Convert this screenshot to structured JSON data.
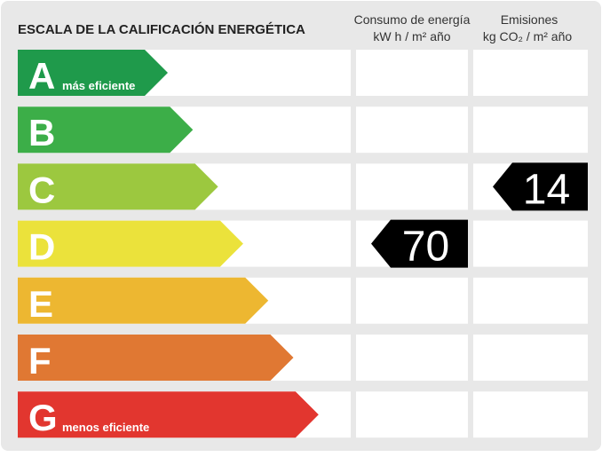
{
  "header": {
    "title": "ESCALA DE LA CALIFICACIÓN ENERGÉTICA",
    "consumo": [
      "Consumo de energía",
      "kW h  / m² año"
    ],
    "emisiones": [
      "Emisiones",
      "kg CO₂  / m² año"
    ]
  },
  "rows": [
    {
      "letter": "A",
      "note": "más eficiente",
      "color": "#1f9a4b"
    },
    {
      "letter": "B",
      "color": "#3cae48"
    },
    {
      "letter": "C",
      "color": "#9cc83f",
      "emisiones": 14
    },
    {
      "letter": "D",
      "color": "#ebe23b",
      "consumo": 70
    },
    {
      "letter": "E",
      "color": "#edb731"
    },
    {
      "letter": "F",
      "color": "#e07833"
    },
    {
      "letter": "G",
      "note": "menos eficiente",
      "color": "#e2362f"
    }
  ]
}
